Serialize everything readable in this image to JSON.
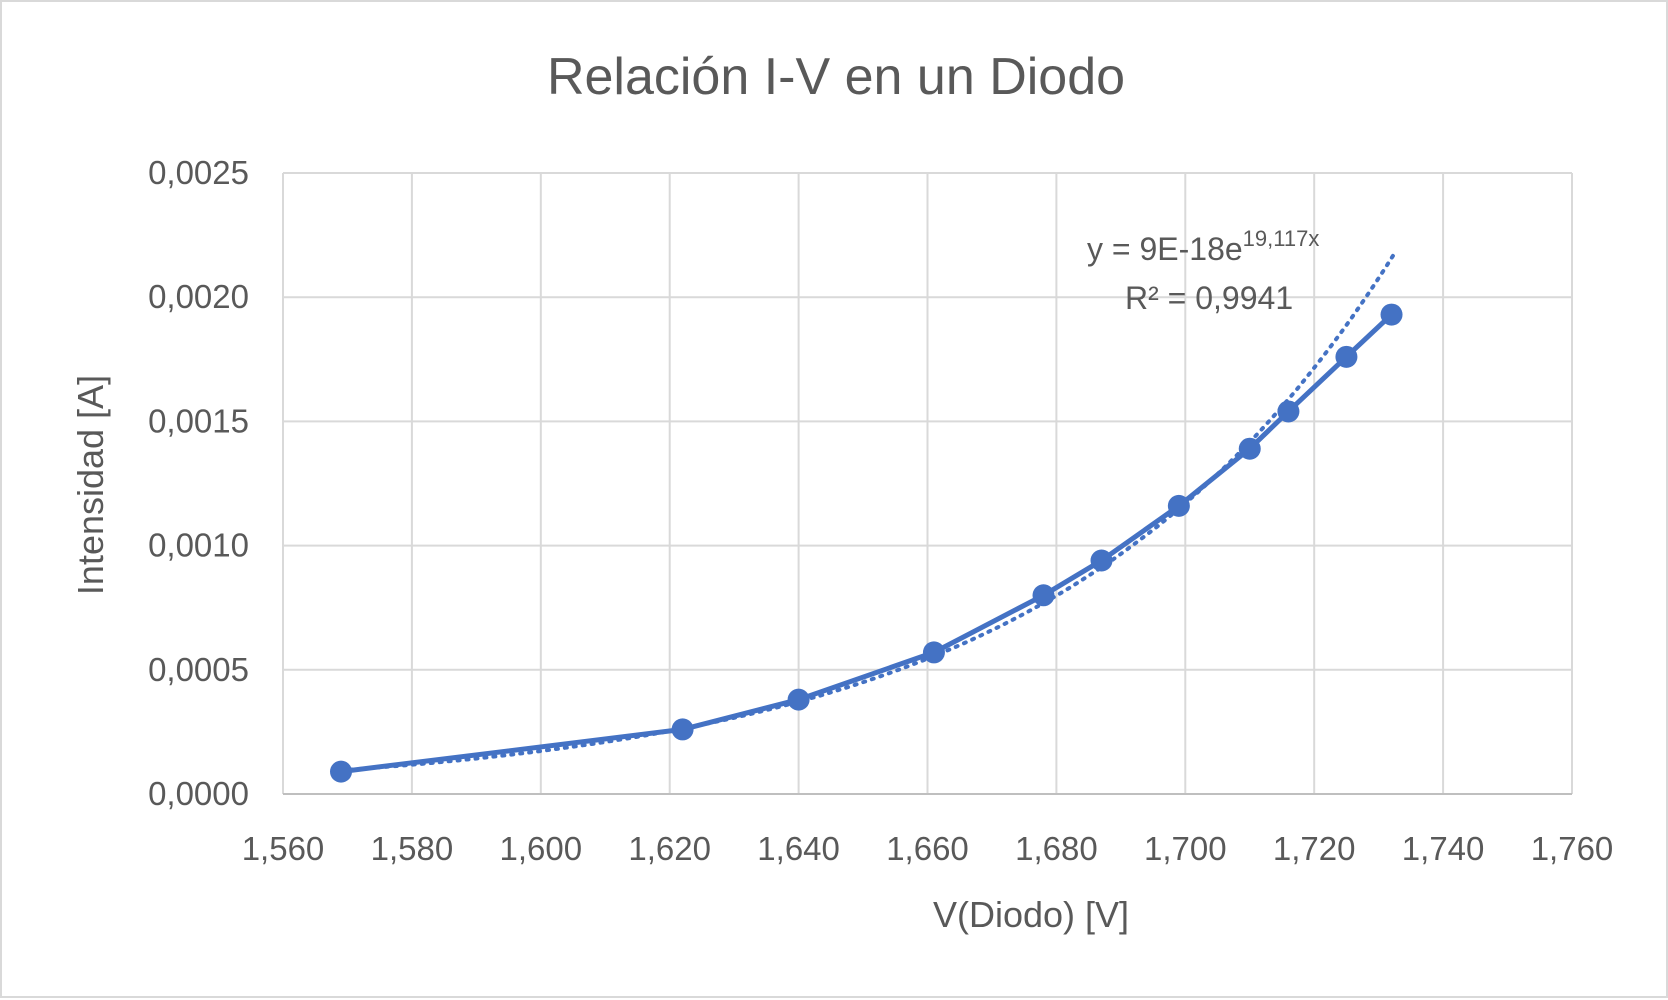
{
  "chart_data": {
    "type": "scatter",
    "title": "Relación I-V en un Diodo",
    "xlabel": "V(Diodo) [V]",
    "ylabel": "Intensidad [A]",
    "xlim": [
      1.56,
      1.76
    ],
    "ylim": [
      0,
      0.0025
    ],
    "x_ticks": [
      1.56,
      1.58,
      1.6,
      1.62,
      1.64,
      1.66,
      1.68,
      1.7,
      1.72,
      1.74,
      1.76
    ],
    "x_tick_labels": [
      "1,560",
      "1,580",
      "1,600",
      "1,620",
      "1,640",
      "1,660",
      "1,680",
      "1,700",
      "1,720",
      "1,740",
      "1,760"
    ],
    "y_ticks": [
      0,
      0.0005,
      0.001,
      0.0015,
      0.002,
      0.0025
    ],
    "y_tick_labels": [
      "0,0000",
      "0,0005",
      "0,0010",
      "0,0015",
      "0,0020",
      "0,0025"
    ],
    "grid": true,
    "series": [
      {
        "color": "#4472c4",
        "x": [
          1.569,
          1.622,
          1.64,
          1.661,
          1.678,
          1.687,
          1.699,
          1.71,
          1.716,
          1.725,
          1.732
        ],
        "y": [
          9e-05,
          0.00026,
          0.00038,
          0.00057,
          0.0008,
          0.00094,
          0.00116,
          0.00139,
          0.00154,
          0.00176,
          0.00193
        ]
      }
    ],
    "trendline": {
      "type": "exponential",
      "a": 9e-18,
      "b": 19.117,
      "style": "dotted",
      "color": "#4472c4",
      "equation_main": "y = 9E-18e",
      "equation_exponent": "19,117x",
      "r_squared": "R² = 0,9941"
    }
  }
}
